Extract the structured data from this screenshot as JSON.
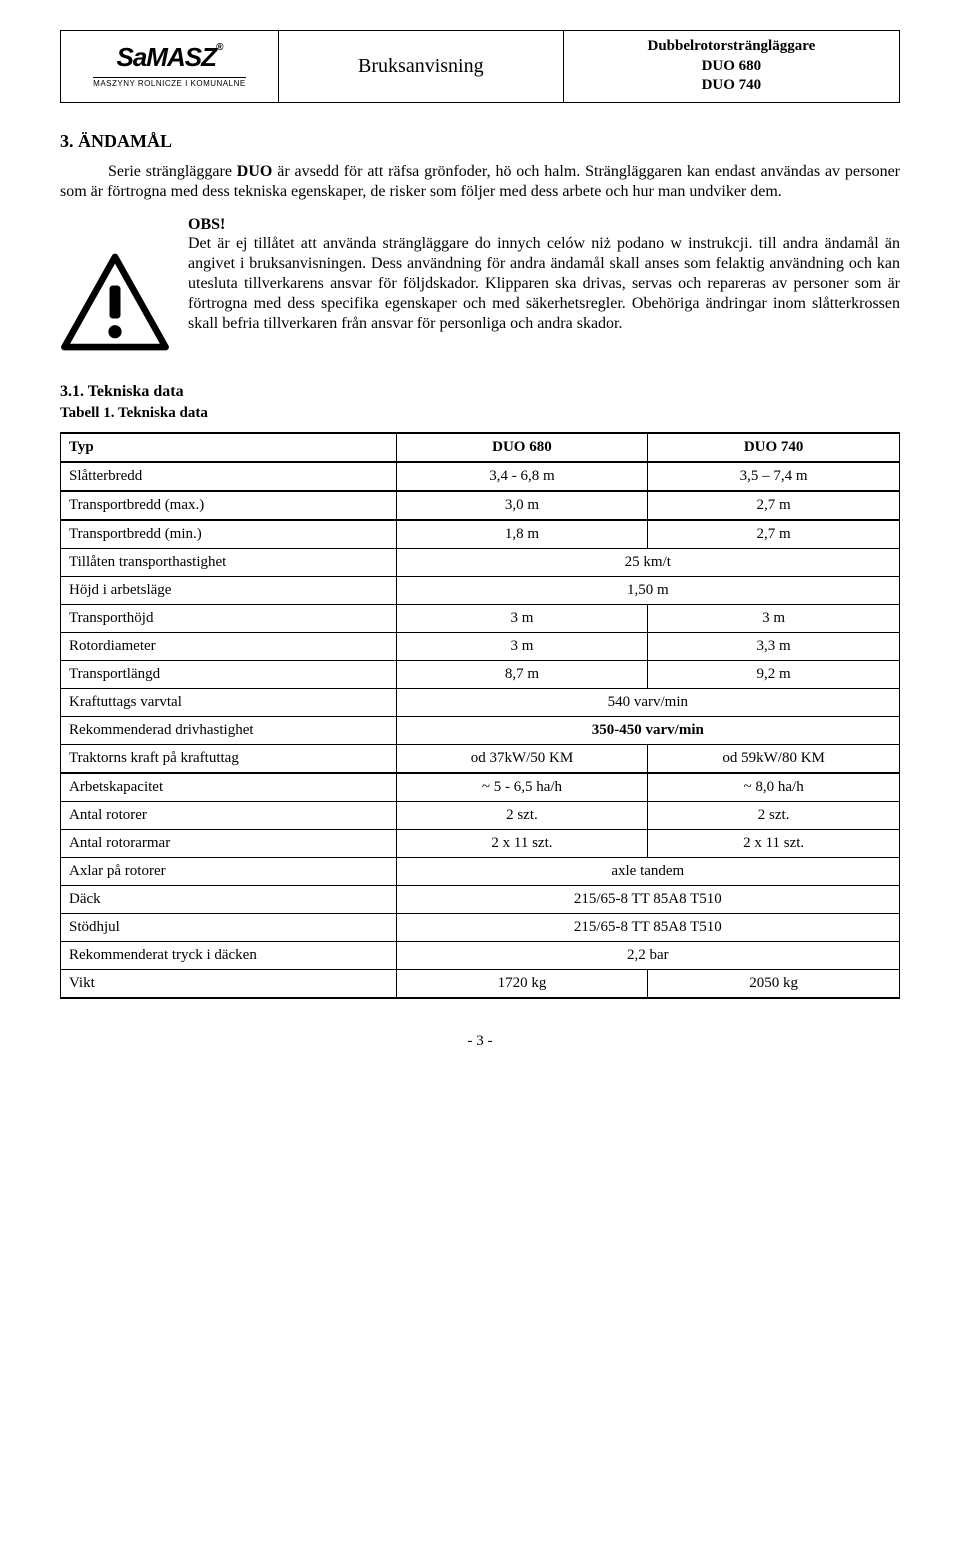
{
  "header": {
    "logo_main": "SaMASZ",
    "logo_reg": "®",
    "logo_sub": "MASZYNY ROLNICZE I KOMUNALNE",
    "mid": "Bruksanvisning",
    "right_line1": "Dubbelrotorsträngläggare",
    "right_line2": "DUO 680",
    "right_line3": "DUO 740"
  },
  "section": {
    "num_title": "3.    ÄNDAMÅL",
    "para1": "Serie strängläggare DUO är avsedd för att räfsa grönfoder, hö och halm. Strängläggaren kan endast användas av personer som är förtrogna med dess tekniska egenskaper, de risker som följer med dess arbete och hur man undviker dem."
  },
  "obs": {
    "heading": "OBS!",
    "body": "Det är ej tillåtet att använda strängläggare do innych celów niż podano w instrukcji.  till  andra  ändamål  än  angivet  i bruksanvisningen.  Dess användning för andra ändamål skall anses som felaktig användning och kan utesluta tillverkarens ansvar för följdskador. Klipparen ska drivas, servas och repareras av personer som är förtrogna med dess specifika egenskaper och med säkerhetsregler. Obehöriga ändringar inom slåtterkrossen skall befria tillverkaren från ansvar för personliga och andra skador."
  },
  "sub": {
    "num_title": "3.1.     Tekniska data",
    "caption": "Tabell 1. Tekniska data"
  },
  "table": {
    "head": {
      "c0": "Typ",
      "c1": "DUO 680",
      "c2": "DUO 740"
    },
    "rows": [
      {
        "label": "Slåtterbredd",
        "v1": "3,4 - 6,8 m",
        "v2": "3,5 – 7,4 m",
        "span": false,
        "thickbottom": true
      },
      {
        "label": "Transportbredd (max.)",
        "v1": "3,0 m",
        "v2": "2,7 m",
        "span": false,
        "thickbottom": true
      },
      {
        "label": "Transportbredd (min.)",
        "v1": "1,8 m",
        "v2": "2,7 m",
        "span": false,
        "thickbottom": false
      },
      {
        "label": "Tillåten transporthastighet",
        "v": "25 km/t",
        "span": true,
        "thickbottom": false
      },
      {
        "label": "Höjd i arbetsläge",
        "v": "1,50 m",
        "span": true,
        "thickbottom": false
      },
      {
        "label": "Transporthöjd",
        "v1": "3 m",
        "v2": "3 m",
        "span": false,
        "thickbottom": false
      },
      {
        "label": "Rotordiameter",
        "v1": "3 m",
        "v2": "3,3 m",
        "span": false,
        "thickbottom": false
      },
      {
        "label": "Transportlängd",
        "v1": "8,7 m",
        "v2": "9,2 m",
        "span": false,
        "thickbottom": false
      },
      {
        "label": "Kraftuttags varvtal",
        "v": "540 varv/min",
        "span": true,
        "thickbottom": false
      },
      {
        "label": "Rekommenderad drivhastighet",
        "v": "350-450 varv/min",
        "span": true,
        "thickbottom": false,
        "bold": true
      },
      {
        "label": "Traktorns kraft på kraftuttag",
        "v1": "od 37kW/50 KM",
        "v2": "od 59kW/80 KM",
        "span": false,
        "thickbottom": true
      },
      {
        "label": "Arbetskapacitet",
        "v1": "~ 5 - 6,5 ha/h",
        "v2": "~ 8,0 ha/h",
        "span": false,
        "thickbottom": false
      },
      {
        "label": "Antal rotorer",
        "v1": "2 szt.",
        "v2": "2 szt.",
        "span": false,
        "thickbottom": false
      },
      {
        "label": "Antal rotorarmar",
        "v1": "2 x 11 szt.",
        "v2": "2 x 11 szt.",
        "span": false,
        "thickbottom": false
      },
      {
        "label": "Axlar på rotorer",
        "v": "axle tandem",
        "span": true,
        "thickbottom": false
      },
      {
        "label": "Däck",
        "v": "215/65-8 TT 85A8 T510",
        "span": true,
        "thickbottom": false
      },
      {
        "label": "Stödhjul",
        "v": "215/65-8 TT 85A8 T510",
        "span": true,
        "thickbottom": false
      },
      {
        "label": "Rekommenderat tryck i däcken",
        "v": "2,2 bar",
        "span": true,
        "thickbottom": false
      },
      {
        "label": "Vikt",
        "v1": "1720 kg",
        "v2": "2050 kg",
        "span": false,
        "thickbottom": true
      }
    ]
  },
  "footer": {
    "pagenum": "- 3 -"
  },
  "colors": {
    "border": "#000000",
    "text": "#000000",
    "bg": "#ffffff"
  }
}
